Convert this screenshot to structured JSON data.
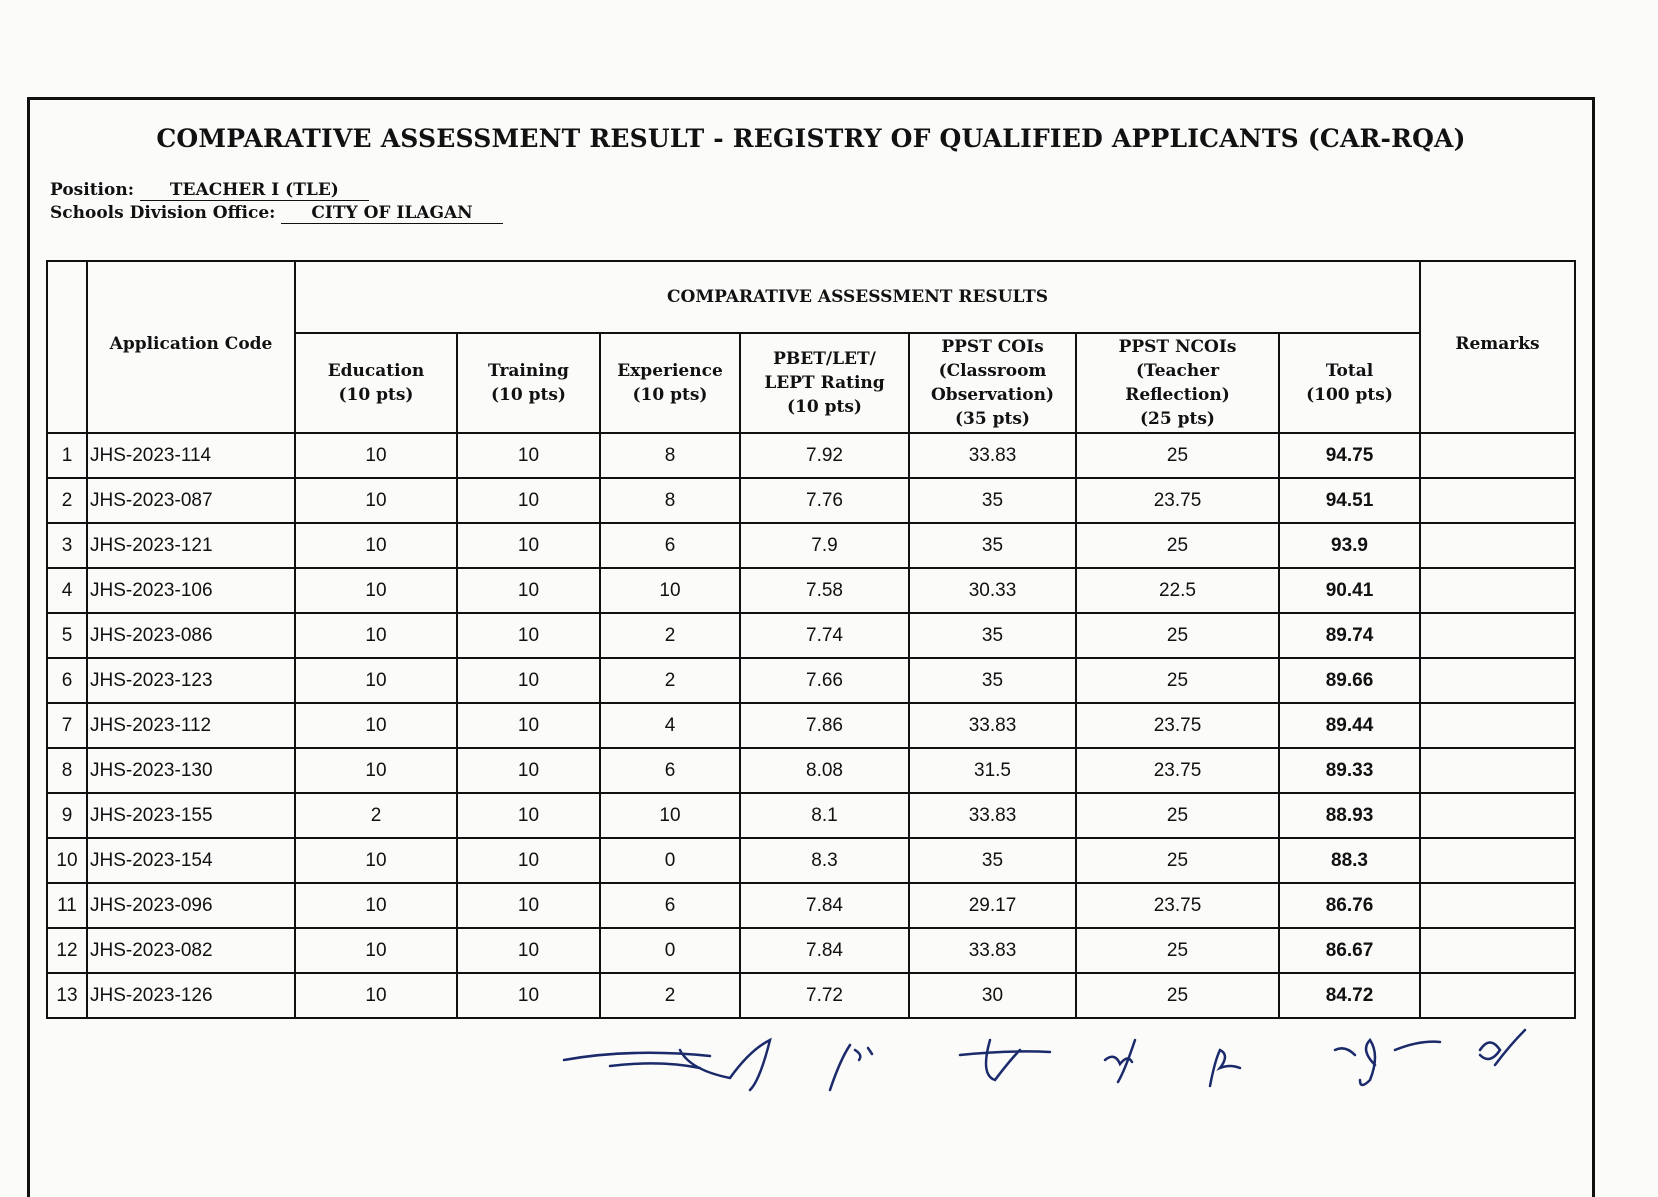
{
  "title": "COMPARATIVE ASSESSMENT RESULT - REGISTRY OF QUALIFIED APPLICANTS (CAR-RQA)",
  "position_label": "Position:",
  "position_value": "TEACHER I (TLE)",
  "sdo_label": "Schools Division Office:",
  "sdo_value": "CITY OF ILAGAN",
  "table": {
    "group_header": "COMPARATIVE ASSESSMENT RESULTS",
    "headers": {
      "code": "Application Code",
      "education": [
        "Education",
        "(10 pts)"
      ],
      "training": [
        "Training",
        "(10 pts)"
      ],
      "experience": [
        "Experience",
        "(10 pts)"
      ],
      "pbet": [
        "PBET/LET/",
        "LEPT Rating",
        "(10 pts)"
      ],
      "cois": [
        "PPST COIs",
        "(Classroom",
        "Observation)",
        "(35 pts)"
      ],
      "ncois": [
        "PPST NCOIs",
        "(Teacher",
        "Reflection)",
        "(25 pts)"
      ],
      "total": [
        "Total",
        "(100 pts)"
      ],
      "remarks": "Remarks"
    },
    "rows": [
      [
        "1",
        "JHS-2023-114",
        "10",
        "10",
        "8",
        "7.92",
        "33.83",
        "25",
        "94.75",
        ""
      ],
      [
        "2",
        "JHS-2023-087",
        "10",
        "10",
        "8",
        "7.76",
        "35",
        "23.75",
        "94.51",
        ""
      ],
      [
        "3",
        "JHS-2023-121",
        "10",
        "10",
        "6",
        "7.9",
        "35",
        "25",
        "93.9",
        ""
      ],
      [
        "4",
        "JHS-2023-106",
        "10",
        "10",
        "10",
        "7.58",
        "30.33",
        "22.5",
        "90.41",
        ""
      ],
      [
        "5",
        "JHS-2023-086",
        "10",
        "10",
        "2",
        "7.74",
        "35",
        "25",
        "89.74",
        ""
      ],
      [
        "6",
        "JHS-2023-123",
        "10",
        "10",
        "2",
        "7.66",
        "35",
        "25",
        "89.66",
        ""
      ],
      [
        "7",
        "JHS-2023-112",
        "10",
        "10",
        "4",
        "7.86",
        "33.83",
        "23.75",
        "89.44",
        ""
      ],
      [
        "8",
        "JHS-2023-130",
        "10",
        "10",
        "6",
        "8.08",
        "31.5",
        "23.75",
        "89.33",
        ""
      ],
      [
        "9",
        "JHS-2023-155",
        "2",
        "10",
        "10",
        "8.1",
        "33.83",
        "25",
        "88.93",
        ""
      ],
      [
        "10",
        "JHS-2023-154",
        "10",
        "10",
        "0",
        "8.3",
        "35",
        "25",
        "88.3",
        ""
      ],
      [
        "11",
        "JHS-2023-096",
        "10",
        "10",
        "6",
        "7.84",
        "29.17",
        "23.75",
        "86.76",
        ""
      ],
      [
        "12",
        "JHS-2023-082",
        "10",
        "10",
        "0",
        "7.84",
        "33.83",
        "25",
        "86.67",
        ""
      ],
      [
        "13",
        "JHS-2023-126",
        "10",
        "10",
        "2",
        "7.72",
        "30",
        "25",
        "84.72",
        ""
      ]
    ]
  }
}
